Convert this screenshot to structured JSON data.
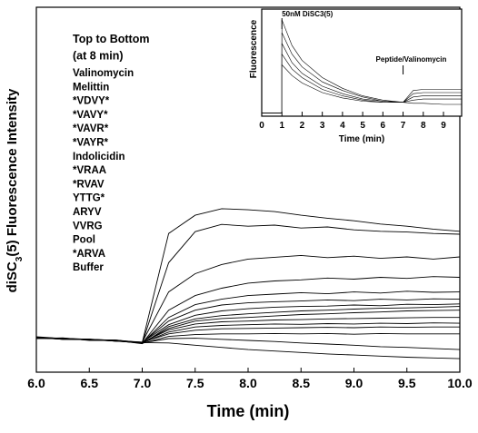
{
  "chart_data": [
    {
      "type": "line",
      "xlabel": "Time (min)",
      "ylabel_parts": [
        "diSC",
        "3",
        "(5) Fluorescence Intensity"
      ],
      "legend_title": [
        "Top to Bottom",
        "(at 8 min)"
      ],
      "line_color": "#000000",
      "xlim": [
        6,
        10
      ],
      "ylim": [
        0,
        100
      ],
      "xticks": [
        {
          "value": 6,
          "label": "6.0"
        },
        {
          "value": 6.5,
          "label": "6.5"
        },
        {
          "value": 7,
          "label": "7.0"
        },
        {
          "value": 7.5,
          "label": "7.5"
        },
        {
          "value": 8,
          "label": "8.0"
        },
        {
          "value": 8.5,
          "label": "8.5"
        },
        {
          "value": 9,
          "label": "9.0"
        },
        {
          "value": 9.5,
          "label": "9.5"
        },
        {
          "value": 10,
          "label": "10.0"
        }
      ],
      "x": [
        6,
        6.25,
        6.5,
        6.75,
        7,
        7.25,
        7.5,
        7.75,
        8,
        8.25,
        8.5,
        8.75,
        9,
        9.25,
        9.5,
        9.75,
        10
      ],
      "series": [
        {
          "name": "Valinomycin",
          "values": [
            9.6,
            9.2,
            9.0,
            8.7,
            8.1,
            38,
            43,
            44.8,
            44.5,
            44,
            43,
            42.2,
            41.5,
            40.6,
            40,
            39.2,
            38.6
          ]
        },
        {
          "name": "Melittin",
          "values": [
            9.4,
            9.3,
            8.8,
            8.6,
            8.0,
            30,
            38.5,
            40.5,
            40,
            40.3,
            39.5,
            39.8,
            39,
            38.6,
            38.4,
            38,
            37.8
          ]
        },
        {
          "name": "*VDVY*",
          "values": [
            9.5,
            9.0,
            9.1,
            8.5,
            8.2,
            22,
            27,
            29.5,
            31,
            31.5,
            32,
            31.4,
            31.8,
            31.2,
            31.6,
            31,
            31.6
          ]
        },
        {
          "name": "*VAVY*",
          "values": [
            9.3,
            9.1,
            8.9,
            8.8,
            7.9,
            17,
            21,
            23,
            24.4,
            25,
            25.3,
            25.8,
            25.5,
            26,
            25.7,
            26.2,
            26
          ]
        },
        {
          "name": "*VAVR*",
          "values": [
            9.7,
            9.2,
            8.9,
            8.6,
            8.0,
            15,
            18.5,
            20,
            21,
            21.4,
            21.8,
            21.5,
            22,
            21.7,
            22.2,
            21.9,
            22
          ]
        },
        {
          "name": "*VAYR*",
          "values": [
            9.2,
            9.4,
            8.7,
            8.7,
            8.1,
            14,
            17,
            18.4,
            19,
            19.3,
            19.5,
            19.8,
            19.6,
            20,
            19.8,
            20.1,
            20
          ]
        },
        {
          "name": "Indolicidin",
          "values": [
            9.6,
            9.0,
            9.0,
            8.5,
            8.2,
            13,
            15.6,
            16.8,
            17.4,
            17.8,
            18,
            18.1,
            18.4,
            18.2,
            18.6,
            18.5,
            18.7
          ]
        },
        {
          "name": "*VRAA",
          "values": [
            9.4,
            9.3,
            8.8,
            8.7,
            7.8,
            12.5,
            14.6,
            15.5,
            16,
            16.4,
            16.8,
            17,
            17.3,
            17.5,
            17.6,
            17.8,
            18
          ]
        },
        {
          "name": "*RVAV",
          "values": [
            9.5,
            9.1,
            9.0,
            8.6,
            8.0,
            12,
            14,
            14.7,
            15,
            15.4,
            15.8,
            16,
            16.3,
            16.5,
            16.8,
            16.9,
            17
          ]
        },
        {
          "name": "YTTG*",
          "values": [
            9.3,
            9.2,
            8.8,
            8.8,
            8.1,
            11.6,
            13.2,
            13.8,
            14,
            14.3,
            14.4,
            14.6,
            14.7,
            14.8,
            14.9,
            15,
            15
          ]
        },
        {
          "name": "ARYV",
          "values": [
            9.6,
            9.1,
            8.9,
            8.5,
            8.0,
            11,
            12.4,
            12.8,
            13,
            13.2,
            13.1,
            13.3,
            13.2,
            13.4,
            13.3,
            13.5,
            13.4
          ]
        },
        {
          "name": "VVRG",
          "values": [
            9.4,
            9.3,
            9.0,
            8.7,
            8.2,
            10.5,
            11.5,
            11.9,
            12,
            12.1,
            12.2,
            12.3,
            12.2,
            12.4,
            12.3,
            12.4,
            12.4
          ]
        },
        {
          "name": "Pool",
          "values": [
            9.5,
            9.0,
            8.9,
            8.6,
            7.9,
            9.8,
            10.3,
            10.5,
            10.5,
            10.6,
            10.5,
            10.6,
            10.4,
            10.6,
            10.5,
            10.5,
            10.5
          ]
        },
        {
          "name": "*ARVA",
          "values": [
            9.3,
            9.2,
            8.8,
            8.7,
            8.0,
            9.2,
            9.3,
            9.0,
            8.7,
            8.4,
            8.0,
            7.7,
            7.4,
            7.0,
            6.8,
            6.5,
            6.2
          ]
        },
        {
          "name": "Buffer",
          "values": [
            9.6,
            9.1,
            9.0,
            8.5,
            8.1,
            8.0,
            7.4,
            6.8,
            6.2,
            5.8,
            5.4,
            5.0,
            4.7,
            4.4,
            4.1,
            3.9,
            3.7
          ]
        }
      ]
    },
    {
      "type": "line",
      "xlabel": "Time (min)",
      "ylabel": "Fluorescence",
      "line_color": "#000000",
      "xlim": [
        0,
        9.9
      ],
      "ylim": [
        0,
        100
      ],
      "xticks": [
        0,
        1,
        2,
        3,
        4,
        5,
        6,
        7,
        8,
        9
      ],
      "annotations": [
        {
          "text": "50nM DiSC3(5)",
          "x": 1
        },
        {
          "text": "Peptide/Valinomycin",
          "x": 7
        }
      ],
      "x": [
        0,
        1,
        1,
        1.5,
        2,
        3,
        4,
        5,
        6,
        7,
        7.5,
        8,
        9,
        9.9
      ],
      "series": [
        {
          "values": [
            3,
            3,
            90,
            66,
            52,
            36,
            26,
            19,
            15,
            13,
            24,
            25,
            25,
            25
          ]
        },
        {
          "values": [
            3,
            3,
            78,
            58,
            46,
            32,
            24,
            18,
            14,
            13,
            21,
            22,
            22,
            22
          ]
        },
        {
          "values": [
            3,
            3,
            68,
            50,
            40,
            28,
            21,
            16,
            14,
            13,
            18,
            19,
            19,
            19
          ]
        },
        {
          "values": [
            3,
            3,
            58,
            44,
            36,
            25,
            19,
            15,
            13,
            13,
            15,
            16,
            16,
            16
          ]
        },
        {
          "values": [
            3,
            3,
            48,
            38,
            31,
            22,
            17,
            14,
            13,
            13,
            12,
            12,
            11,
            11
          ]
        }
      ]
    }
  ]
}
